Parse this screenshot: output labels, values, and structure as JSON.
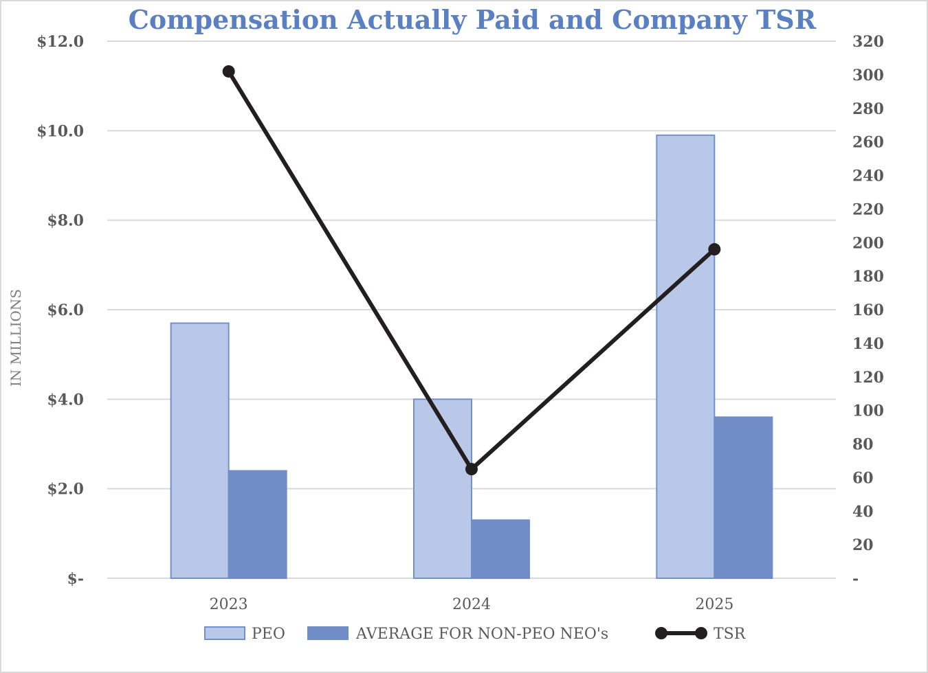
{
  "chart_data": {
    "type": "bar",
    "title": "Compensation Actually Paid and Company TSR",
    "ylabel": "IN MILLIONS",
    "categories": [
      "2023",
      "2024",
      "2025"
    ],
    "series": [
      {
        "name": "PEO",
        "kind": "bar",
        "axis": "left",
        "values": [
          5.7,
          4.0,
          9.9
        ],
        "color": "#b9c8e8",
        "stroke": "#7191c9"
      },
      {
        "name": "AVERAGE FOR NON-PEO NEO's",
        "kind": "bar",
        "axis": "left",
        "values": [
          2.4,
          1.3,
          3.6
        ],
        "color": "#708dc7",
        "stroke": "#708dc7"
      },
      {
        "name": "TSR",
        "kind": "line",
        "axis": "right",
        "values": [
          302,
          65,
          196
        ],
        "color": "#231f20"
      }
    ],
    "ylim_left": [
      0,
      12
    ],
    "ylim_right": [
      0,
      320
    ],
    "yticks_left": [
      "$-",
      "$2.0",
      "$4.0",
      "$6.0",
      "$8.0",
      "$10.0",
      "$12.0"
    ],
    "yticks_right": [
      "-",
      "20",
      "40",
      "60",
      "80",
      "100",
      "120",
      "140",
      "160",
      "180",
      "200",
      "220",
      "240",
      "260",
      "280",
      "300",
      "320"
    ],
    "grid": true,
    "legend": "bottom",
    "title_color": "#5b80c1",
    "gridline_color": "#d9d9d9"
  }
}
